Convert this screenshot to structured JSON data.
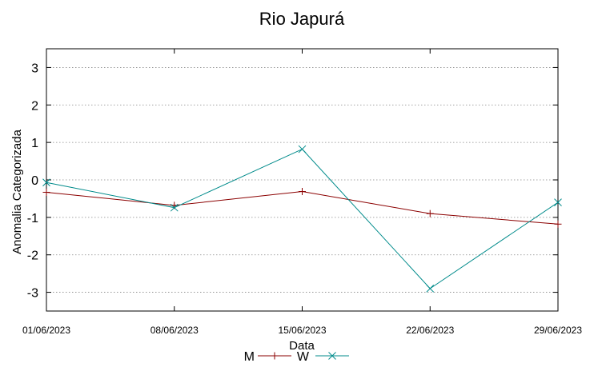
{
  "chart_data": {
    "type": "line",
    "title": "Rio Japurá",
    "xlabel": "Data",
    "ylabel": "Anomalia Categorizada",
    "categories": [
      "01/06/2023",
      "08/06/2023",
      "15/06/2023",
      "22/06/2023",
      "29/06/2023"
    ],
    "ylim": [
      -3.5,
      3.5
    ],
    "yticks": [
      -3,
      -2,
      -1,
      0,
      1,
      2,
      3
    ],
    "grid": "horizontal-dotted",
    "legend_position": "bottom-center",
    "series": [
      {
        "name": "M",
        "color": "#8b0000",
        "marker": "plus",
        "values": [
          -0.33,
          -0.68,
          -0.31,
          -0.9,
          -1.18
        ]
      },
      {
        "name": "W",
        "color": "#008b8b",
        "marker": "x",
        "values": [
          -0.07,
          -0.74,
          0.82,
          -2.9,
          -0.6
        ]
      }
    ]
  }
}
